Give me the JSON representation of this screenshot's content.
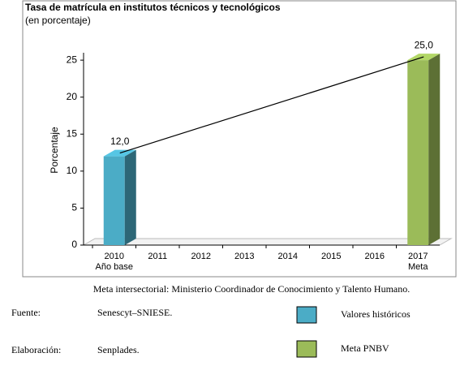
{
  "chart_data": {
    "type": "bar3d",
    "title": "Tasa de matrícula en institutos técnicos y tecnológicos",
    "subtitle": "(en porcentaje)",
    "y_label": "Porcentaje",
    "categories": [
      "2010",
      "2011",
      "2012",
      "2013",
      "2014",
      "2015",
      "2016",
      "2017"
    ],
    "category_notes": [
      "Año base",
      null,
      null,
      null,
      null,
      null,
      null,
      "Meta"
    ],
    "series": [
      {
        "name": "Valores históricos",
        "color": "#4bacc6",
        "values": [
          12.0,
          null,
          null,
          null,
          null,
          null,
          null,
          null
        ],
        "value_labels": [
          "12,0",
          null,
          null,
          null,
          null,
          null,
          null,
          null
        ]
      },
      {
        "name": "Meta PNBV",
        "color": "#9bbb59",
        "values": [
          null,
          null,
          null,
          null,
          null,
          null,
          null,
          25.0
        ],
        "value_labels": [
          null,
          null,
          null,
          null,
          null,
          null,
          null,
          "25,0"
        ]
      }
    ],
    "ylim": [
      0,
      26
    ],
    "yticks": [
      0,
      5,
      10,
      15,
      20,
      25
    ],
    "trend_line": true
  },
  "footer": {
    "note": "Meta intersectorial: Ministerio Coordinador de Conocimiento y Talento Humano.",
    "source_label": "Fuente:",
    "source": "Senescyt–SNIESE.",
    "made_label": "Elaboración:",
    "made": "Senplades."
  }
}
